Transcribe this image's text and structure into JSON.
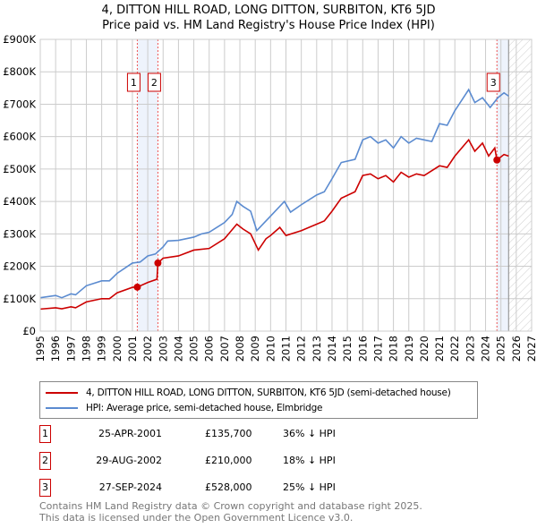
{
  "title": "4, DITTON HILL ROAD, LONG DITTON, SURBITON, KT6 5JD",
  "subtitle": "Price paid vs. HM Land Registry's House Price Index (HPI)",
  "chart_data": {
    "type": "line",
    "xlim": [
      1995,
      2027
    ],
    "ylim": [
      0,
      900000
    ],
    "xticks": [
      "1995",
      "1996",
      "1997",
      "1998",
      "1999",
      "2000",
      "2001",
      "2002",
      "2003",
      "2004",
      "2005",
      "2006",
      "2007",
      "2008",
      "2009",
      "2010",
      "2011",
      "2012",
      "2013",
      "2014",
      "2015",
      "2016",
      "2017",
      "2018",
      "2019",
      "2020",
      "2021",
      "2022",
      "2023",
      "2024",
      "2025",
      "2026",
      "2027"
    ],
    "yticks": [
      {
        "v": 0,
        "l": "£0"
      },
      {
        "v": 100000,
        "l": "£100K"
      },
      {
        "v": 200000,
        "l": "£200K"
      },
      {
        "v": 300000,
        "l": "£300K"
      },
      {
        "v": 400000,
        "l": "£400K"
      },
      {
        "v": 500000,
        "l": "£500K"
      },
      {
        "v": 600000,
        "l": "£600K"
      },
      {
        "v": 700000,
        "l": "£700K"
      },
      {
        "v": 800000,
        "l": "£800K"
      },
      {
        "v": 900000,
        "l": "£900K"
      }
    ],
    "forecast_start": 2025.5,
    "series": [
      {
        "name": "4, DITTON HILL ROAD, LONG DITTON, SURBITON, KT6 5JD (semi-detached house)",
        "color": "#cc0000",
        "x": [
          1995,
          1996,
          1996.4,
          1997,
          1997.3,
          1998,
          1999,
          1999.5,
          2000,
          2001,
          2001.32,
          2002,
          2002.6,
          2002.66,
          2003,
          2004,
          2005,
          2006,
          2007,
          2007.8,
          2008.2,
          2008.7,
          2009.2,
          2009.7,
          2010,
          2010.6,
          2011,
          2012,
          2013,
          2013.5,
          2014,
          2014.6,
          2015.5,
          2016,
          2016.5,
          2017,
          2017.5,
          2018,
          2018.5,
          2019,
          2019.5,
          2020,
          2021,
          2021.5,
          2022,
          2022.9,
          2023.3,
          2023.8,
          2024.2,
          2024.6,
          2024.74,
          2025.2,
          2025.5
        ],
        "y": [
          68000,
          72000,
          69000,
          75000,
          72000,
          90000,
          100000,
          100000,
          118000,
          135000,
          135700,
          150000,
          160000,
          210000,
          225000,
          232000,
          250000,
          255000,
          285000,
          330000,
          315000,
          300000,
          250000,
          285000,
          295000,
          320000,
          295000,
          310000,
          330000,
          340000,
          370000,
          410000,
          430000,
          480000,
          485000,
          470000,
          480000,
          460000,
          490000,
          475000,
          485000,
          480000,
          510000,
          505000,
          540000,
          590000,
          555000,
          580000,
          540000,
          565000,
          528000,
          545000,
          540000
        ]
      },
      {
        "name": "HPI: Average price, semi-detached house, Elmbridge",
        "color": "#5b8bd0",
        "x": [
          1995,
          1996,
          1996.4,
          1997,
          1997.3,
          1998,
          1999,
          1999.5,
          2000,
          2001,
          2001.5,
          2002,
          2002.5,
          2003,
          2003.3,
          2004,
          2005,
          2005.5,
          2006,
          2007,
          2007.5,
          2007.8,
          2008.2,
          2008.7,
          2009.1,
          2009.5,
          2010,
          2010.9,
          2011.3,
          2012,
          2013,
          2013.5,
          2014,
          2014.6,
          2015.5,
          2016,
          2016.5,
          2017,
          2017.5,
          2018,
          2018.5,
          2019,
          2019.5,
          2020,
          2020.5,
          2021,
          2021.5,
          2022,
          2022.9,
          2023.3,
          2023.8,
          2024.3,
          2024.8,
          2025.2,
          2025.5
        ],
        "y": [
          103000,
          110000,
          103000,
          115000,
          112000,
          140000,
          155000,
          155000,
          178000,
          210000,
          213000,
          232000,
          238000,
          260000,
          278000,
          280000,
          290000,
          300000,
          305000,
          335000,
          360000,
          400000,
          385000,
          370000,
          310000,
          330000,
          355000,
          400000,
          367000,
          390000,
          420000,
          430000,
          470000,
          520000,
          530000,
          590000,
          600000,
          580000,
          590000,
          565000,
          600000,
          580000,
          595000,
          590000,
          585000,
          640000,
          635000,
          680000,
          745000,
          705000,
          720000,
          690000,
          720000,
          735000,
          725000
        ]
      }
    ],
    "sales": [
      {
        "n": "1",
        "x": 2001.32,
        "date": "25-APR-2001",
        "price": 135700,
        "price_label": "£135,700",
        "hpi": "36% ↓ HPI"
      },
      {
        "n": "2",
        "x": 2002.66,
        "date": "29-AUG-2002",
        "price": 210000,
        "price_label": "£210,000",
        "hpi": "18% ↓ HPI"
      },
      {
        "n": "3",
        "x": 2024.74,
        "date": "27-SEP-2024",
        "price": 528000,
        "price_label": "£528,000",
        "hpi": "25% ↓ HPI"
      }
    ]
  },
  "footer": {
    "line1": "Contains HM Land Registry data © Crown copyright and database right 2025.",
    "line2": "This data is licensed under the Open Government Licence v3.0."
  }
}
